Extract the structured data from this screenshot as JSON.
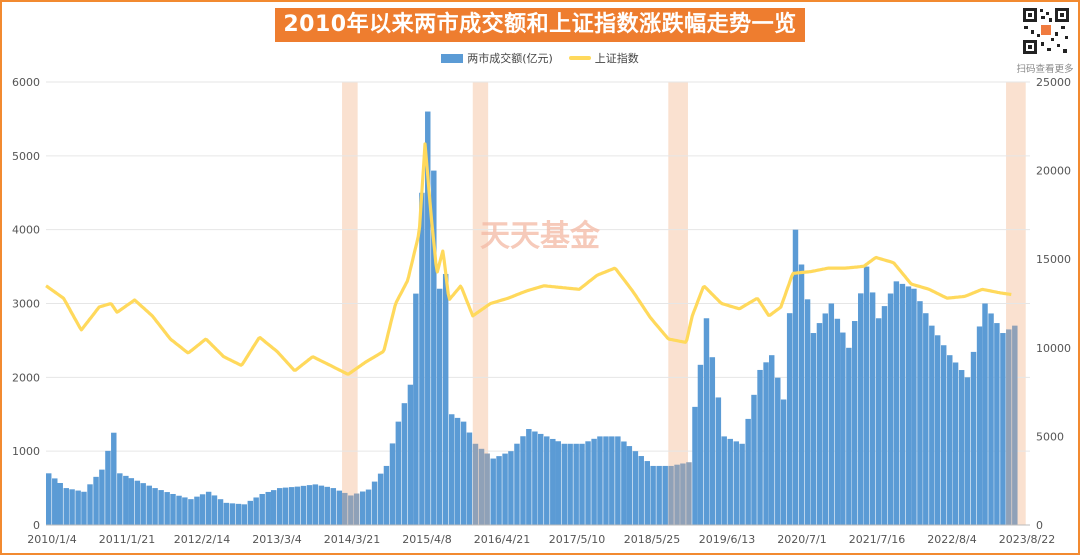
{
  "title": "2010年以来两市成交额和上证指数涨跌幅走势一览",
  "qr_caption": "扫码查看更多",
  "watermark": "天天基金",
  "legend": {
    "turnover": "两市成交额(亿元)",
    "index": "上证指数"
  },
  "colors": {
    "bars": "#5b9bd5",
    "bars_in_band": "#8fa1b8",
    "line": "#ffd95c",
    "band": "#f9dcc8",
    "border": "#f28a30",
    "title_bg": "#ee7d2f",
    "grid": "#e6e6e6",
    "watermark": "#f4b9a4"
  },
  "chart_data": {
    "type": "bar",
    "combo": "bar+line, dual y-axis",
    "title": "2010年以来两市成交额和上证指数涨跌幅走势一览",
    "x_tick_labels": [
      "2010/1/4",
      "2011/1/21",
      "2012/2/14",
      "2013/3/4",
      "2014/3/21",
      "2015/4/8",
      "2016/4/21",
      "2017/5/10",
      "2018/5/25",
      "2019/6/13",
      "2020/7/1",
      "2021/7/16",
      "2022/8/4",
      "2023/8/22"
    ],
    "y_left": {
      "label": "两市成交额(亿元)",
      "range": [
        0,
        6000
      ],
      "ticks": [
        0,
        1000,
        2000,
        3000,
        4000,
        5000,
        6000
      ]
    },
    "y_right": {
      "label": "上证指数",
      "range": [
        0,
        25000
      ],
      "ticks": [
        0,
        5000,
        10000,
        15000,
        20000,
        25000
      ]
    },
    "grid": true,
    "legend_position": "top-center",
    "highlight_periods": [
      [
        "2014/3/1",
        "2014/5/20"
      ],
      [
        "2016/1/1",
        "2016/3/20"
      ],
      [
        "2018/10/1",
        "2019/1/10"
      ],
      [
        "2023/7/1",
        "2023/10/10"
      ]
    ],
    "series": [
      {
        "name": "两市成交额(亿元)",
        "type": "bar",
        "axis": "left",
        "x": [
          "2010/1",
          "2010/4",
          "2010/7",
          "2010/10",
          "2010/12",
          "2011/1",
          "2011/4",
          "2011/7",
          "2011/10",
          "2012/1",
          "2012/4",
          "2012/7",
          "2012/10",
          "2013/1",
          "2013/4",
          "2013/7",
          "2013/10",
          "2014/1",
          "2014/4",
          "2014/7",
          "2014/10",
          "2014/12",
          "2015/2",
          "2015/4",
          "2015/5",
          "2015/6",
          "2015/7",
          "2015/8",
          "2015/9",
          "2015/11",
          "2016/1",
          "2016/4",
          "2016/7",
          "2016/10",
          "2017/1",
          "2017/4",
          "2017/7",
          "2017/10",
          "2018/1",
          "2018/4",
          "2018/7",
          "2018/10",
          "2019/1",
          "2019/2",
          "2019/4",
          "2019/7",
          "2019/10",
          "2020/1",
          "2020/3",
          "2020/5",
          "2020/7",
          "2020/10",
          "2021/1",
          "2021/4",
          "2021/7",
          "2021/9",
          "2021/12",
          "2022/3",
          "2022/6",
          "2022/9",
          "2022/12",
          "2023/3",
          "2023/6",
          "2023/8"
        ],
        "values": [
          700,
          500,
          450,
          750,
          1250,
          700,
          600,
          500,
          420,
          350,
          450,
          300,
          280,
          420,
          500,
          520,
          550,
          500,
          400,
          480,
          800,
          1400,
          1900,
          4500,
          5600,
          4800,
          3200,
          3400,
          1500,
          1400,
          1100,
          900,
          1000,
          1300,
          1200,
          1100,
          1100,
          1200,
          1200,
          1000,
          800,
          800,
          850,
          1600,
          2800,
          1200,
          1100,
          2100,
          2300,
          1700,
          4000,
          2600,
          3000,
          2400,
          3500,
          2800,
          3300,
          3200,
          2700,
          2300,
          2000,
          3000,
          2600,
          2700
        ]
      },
      {
        "name": "上证指数",
        "type": "line",
        "axis": "right",
        "x": [
          "2010/1",
          "2010/4",
          "2010/7",
          "2010/10",
          "2010/12",
          "2011/1",
          "2011/4",
          "2011/7",
          "2011/10",
          "2012/1",
          "2012/4",
          "2012/7",
          "2012/10",
          "2013/1",
          "2013/4",
          "2013/7",
          "2013/10",
          "2014/1",
          "2014/4",
          "2014/7",
          "2014/10",
          "2014/12",
          "2015/2",
          "2015/4",
          "2015/5",
          "2015/6",
          "2015/7",
          "2015/8",
          "2015/9",
          "2015/11",
          "2016/1",
          "2016/4",
          "2016/7",
          "2016/10",
          "2017/1",
          "2017/4",
          "2017/7",
          "2017/10",
          "2018/1",
          "2018/4",
          "2018/7",
          "2018/10",
          "2019/1",
          "2019/2",
          "2019/4",
          "2019/7",
          "2019/10",
          "2020/1",
          "2020/3",
          "2020/5",
          "2020/7",
          "2020/10",
          "2021/1",
          "2021/4",
          "2021/7",
          "2021/9",
          "2021/12",
          "2022/3",
          "2022/6",
          "2022/9",
          "2022/12",
          "2023/3",
          "2023/6",
          "2023/8"
        ],
        "values": [
          13500,
          12800,
          11000,
          12300,
          12500,
          12000,
          12700,
          11800,
          10500,
          9700,
          10500,
          9500,
          9000,
          10600,
          9800,
          8700,
          9500,
          9000,
          8500,
          9200,
          9800,
          12500,
          13800,
          16500,
          21500,
          17500,
          14200,
          15500,
          12700,
          13500,
          11800,
          12500,
          12800,
          13200,
          13500,
          13400,
          13300,
          14100,
          14500,
          13200,
          11700,
          10500,
          10300,
          11800,
          13500,
          12500,
          12200,
          12800,
          11800,
          12300,
          14200,
          14300,
          14500,
          14500,
          14600,
          15100,
          14800,
          13600,
          13300,
          12800,
          12900,
          13300,
          13100,
          13000
        ]
      }
    ]
  }
}
